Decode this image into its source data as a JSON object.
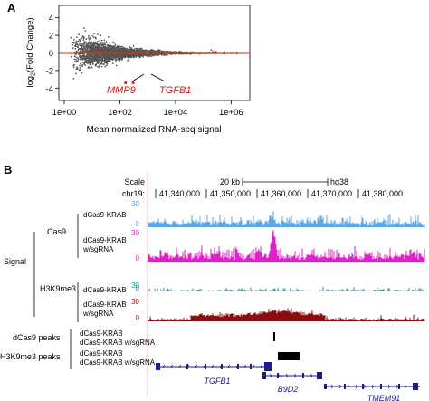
{
  "panel_a": {
    "label": "A",
    "chart_data": {
      "type": "scatter",
      "title": "",
      "xlabel": "Mean normalized RNA-seq signal",
      "ylabel": "log2(Fold Change)",
      "ylabel_main": "log",
      "ylabel_sub": "2",
      "ylabel_rest": "(Fold Change)",
      "xscale": "log",
      "xlim": [
        1,
        3000000
      ],
      "ylim": [
        -5,
        5
      ],
      "x_ticks": [
        1,
        100,
        10000,
        1000000
      ],
      "x_tick_labels": [
        "1e+00",
        "1e+02",
        "1e+04",
        "1e+06"
      ],
      "y_ticks": [
        -4,
        -2,
        0,
        2,
        4
      ],
      "y_tick_labels": [
        "-4",
        "-2",
        "0",
        "2",
        "4"
      ],
      "grid": false,
      "reference_line": 0,
      "highlighted": [
        {
          "name": "MMP9",
          "x": 160,
          "y": -3.4
        },
        {
          "name": "TGFB1",
          "x": 300,
          "y": -3.4
        }
      ],
      "colors": {
        "points": "#555555",
        "significant": "#e8281e",
        "refline": "#e8281e",
        "gene_label": "#d7191c"
      }
    }
  },
  "panel_b": {
    "label": "B",
    "scale_label": "Scale",
    "scale_bar_label": "20 kb",
    "assembly": "hg38",
    "chrom": "chr19:",
    "coords": [
      "41,340,000",
      "41,350,000",
      "41,360,000",
      "41,370,000",
      "41,380,000"
    ],
    "signal_label": "Signal",
    "groups": [
      {
        "name": "Cas9",
        "tracks": [
          {
            "label_lines": [
              "dCas9-KRAB"
            ],
            "ymax": "30",
            "ymin": "0",
            "color": "#5aa8e6"
          },
          {
            "label_lines": [
              "dCas9-KRAB",
              "w/sgRNA"
            ],
            "ymax": "30",
            "ymin": "0",
            "color": "#e020c8"
          }
        ]
      },
      {
        "name": "H3K9me3",
        "tracks": [
          {
            "label_lines": [
              "dCas9-KRAB"
            ],
            "ymax": "30",
            "ymin": "0",
            "color": "#1f8f8f"
          },
          {
            "label_lines": [
              "dCas9-KRAB",
              "w/sgRNA"
            ],
            "ymax": "30",
            "ymin": "0",
            "color": "#8b0d0d"
          }
        ]
      }
    ],
    "peak_groups": [
      {
        "name": "dCas9 peaks",
        "labels": [
          "dCas9-KRAB",
          "dCas9-KRAB w/sgRNA"
        ]
      },
      {
        "name": "H3K9me3 peaks",
        "labels": [
          "dCas9-KRAB",
          "dCas9-KRAB w/sgRNA"
        ]
      }
    ],
    "genes": [
      "TGFB1",
      "B9D2",
      "TMEM91"
    ],
    "colors": {
      "gene": "#1c1c8c",
      "peak": "#000000",
      "tick_label": "#4a90d9"
    }
  }
}
